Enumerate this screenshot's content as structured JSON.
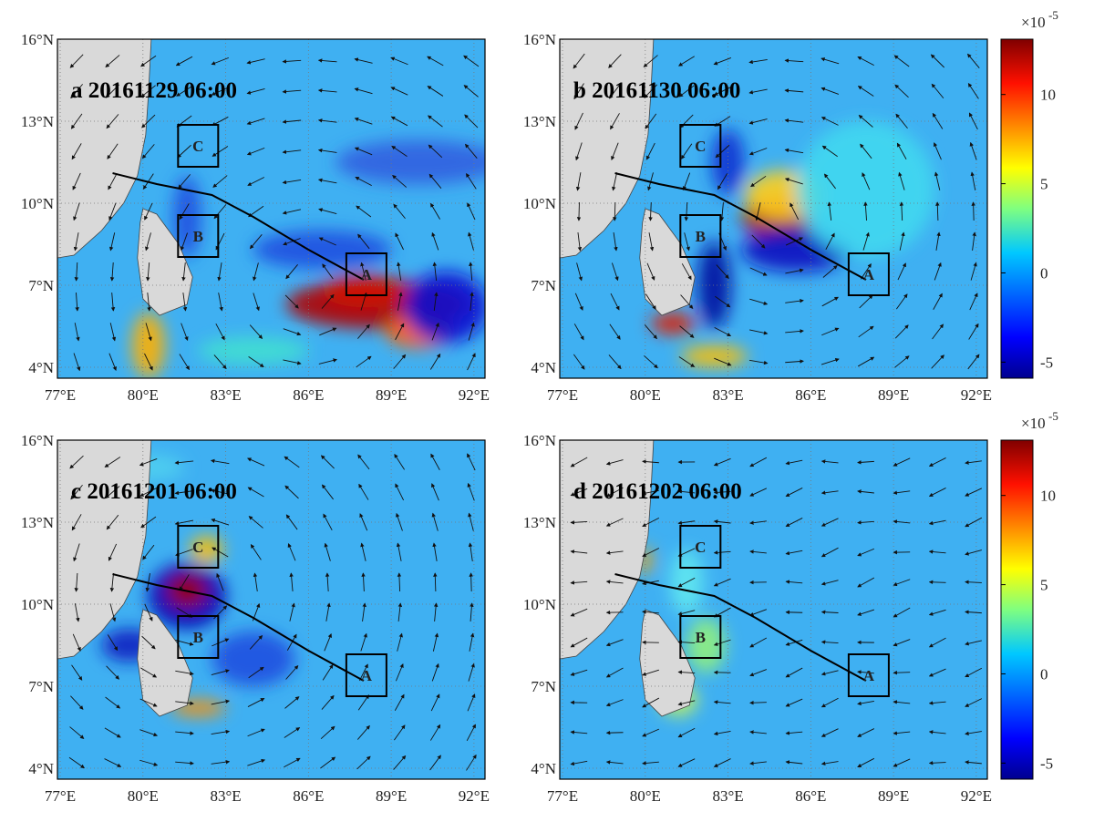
{
  "axes": {
    "xlim": [
      76.9,
      92.4
    ],
    "ylim": [
      3.6,
      16
    ],
    "xticks": [
      {
        "value": 77,
        "label": "77°E"
      },
      {
        "value": 80,
        "label": "80°E"
      },
      {
        "value": 83,
        "label": "83°E"
      },
      {
        "value": 86,
        "label": "86°E"
      },
      {
        "value": 89,
        "label": "89°E"
      },
      {
        "value": 92,
        "label": "92°E"
      }
    ],
    "yticks": [
      {
        "value": 4,
        "label": "4°N"
      },
      {
        "value": 7,
        "label": "7°N"
      },
      {
        "value": 10,
        "label": "10°N"
      },
      {
        "value": 13,
        "label": "13°N"
      },
      {
        "value": 16,
        "label": "16°N"
      }
    ]
  },
  "panels": [
    {
      "title": "a 20161129 06:00",
      "boxes": [
        "A",
        "B",
        "C"
      ]
    },
    {
      "title": "b 20161130 06:00",
      "boxes": [
        "A",
        "B",
        "C"
      ]
    },
    {
      "title": "c 20161201 06:00",
      "boxes": [
        "A",
        "B",
        "C"
      ]
    },
    {
      "title": "d 20161202 06:00",
      "boxes": [
        "A",
        "B",
        "C"
      ]
    }
  ],
  "colorbar": {
    "scale_label": "×10",
    "scale_exponent": "-5",
    "clim": [
      -5.9,
      13.1
    ],
    "ticks": [
      -5,
      0,
      5,
      10
    ]
  }
}
